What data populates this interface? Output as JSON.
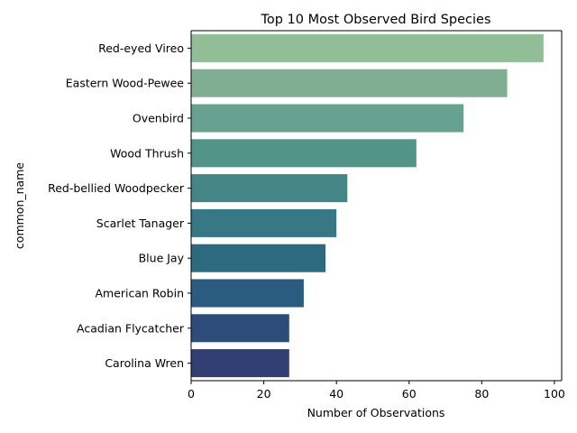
{
  "chart_data": {
    "type": "bar",
    "orientation": "horizontal",
    "title": "Top 10 Most Observed Bird Species",
    "xlabel": "Number of Observations",
    "ylabel": "common_name",
    "xlim": [
      0,
      102
    ],
    "xticks": [
      0,
      20,
      40,
      60,
      80,
      100
    ],
    "grid": false,
    "categories": [
      "Red-eyed Vireo",
      "Eastern Wood-Pewee",
      "Ovenbird",
      "Wood Thrush",
      "Red-bellied Woodpecker",
      "Scarlet Tanager",
      "Blue Jay",
      "American Robin",
      "Acadian Flycatcher",
      "Carolina Wren"
    ],
    "values": [
      97,
      87,
      75,
      62,
      43,
      40,
      37,
      31,
      27,
      27
    ],
    "colors": [
      "#91be97",
      "#7fae93",
      "#67a290",
      "#539489",
      "#448688",
      "#387886",
      "#2d6a80",
      "#2b5b7e",
      "#2d4c79",
      "#323f72"
    ]
  }
}
